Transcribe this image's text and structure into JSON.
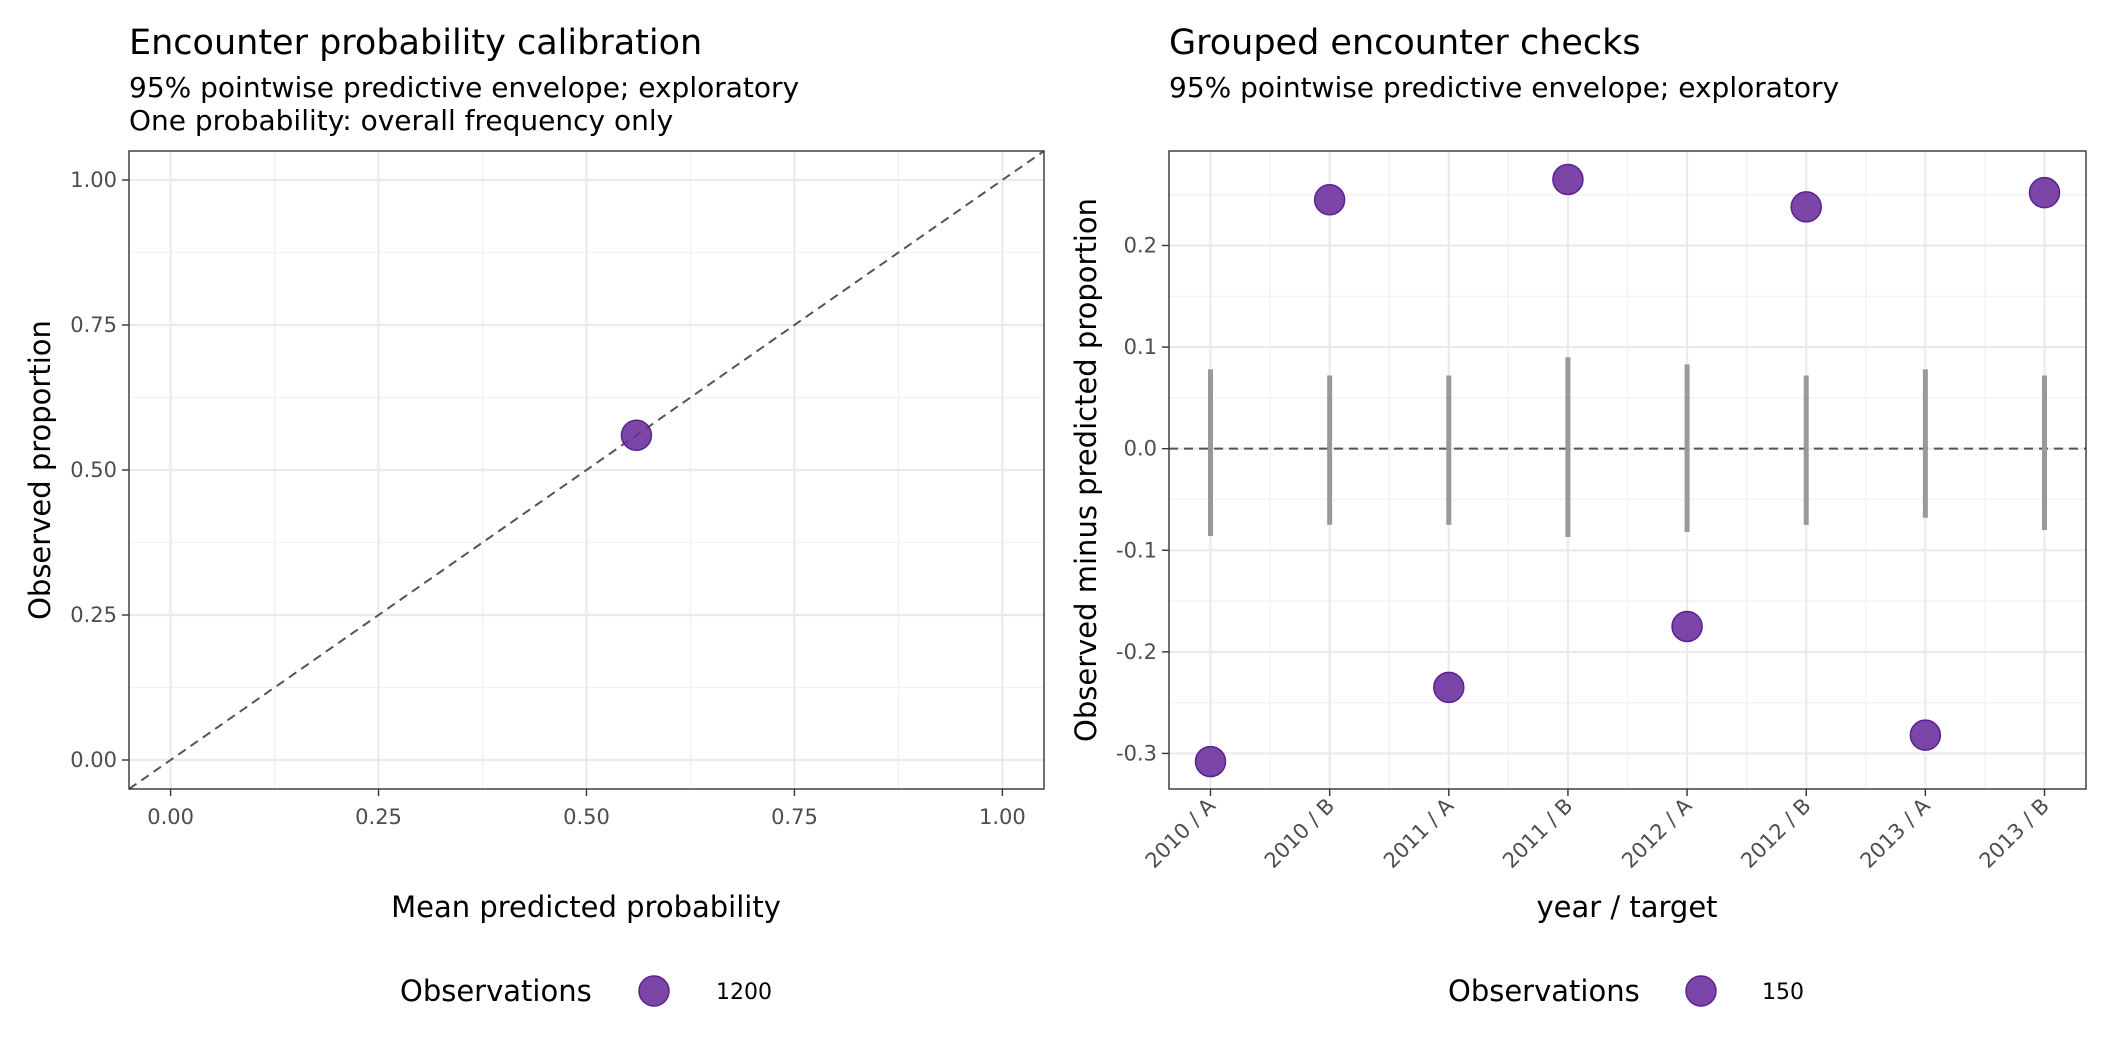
{
  "chart_data": [
    {
      "type": "scatter",
      "title": "Encounter probability calibration",
      "subtitle": [
        "95% pointwise predictive envelope; exploratory",
        "One probability: overall frequency only"
      ],
      "xlabel": "Mean predicted probability",
      "ylabel": "Observed proportion",
      "xlim": [
        -0.05,
        1.05
      ],
      "ylim": [
        -0.05,
        1.05
      ],
      "x_ticks": [
        0,
        0.25,
        0.5,
        0.75,
        1
      ],
      "x_tick_labels": [
        "0.00",
        "0.25",
        "0.50",
        "0.75",
        "1.00"
      ],
      "y_ticks": [
        0,
        0.25,
        0.5,
        0.75,
        1
      ],
      "y_tick_labels": [
        "0.00",
        "0.25",
        "0.50",
        "0.75",
        "1.00"
      ],
      "reference_line": "identity, dashed",
      "points": [
        {
          "x": 0.56,
          "y": 0.56,
          "n": 1200
        }
      ],
      "legend": {
        "title": "Observations",
        "entries": [
          "1200"
        ],
        "placement": "bottom"
      },
      "point_color": "#6a2c9c",
      "grid": true
    },
    {
      "type": "scatter",
      "title": "Grouped encounter checks",
      "subtitle": [
        "95% pointwise predictive envelope; exploratory"
      ],
      "xlabel": "year / target",
      "ylabel": "Observed minus predicted proportion",
      "categories": [
        "2010 / A",
        "2010 / B",
        "2011 / A",
        "2011 / B",
        "2012 / A",
        "2012 / B",
        "2013 / A",
        "2013 / B"
      ],
      "values": [
        -0.308,
        0.245,
        -0.235,
        0.265,
        -0.175,
        0.238,
        -0.282,
        0.252
      ],
      "envelope_low": [
        -0.086,
        -0.075,
        -0.075,
        -0.087,
        -0.082,
        -0.075,
        -0.068,
        -0.08
      ],
      "envelope_high": [
        0.078,
        0.072,
        0.072,
        0.09,
        0.083,
        0.072,
        0.078,
        0.072
      ],
      "ylim": [
        -0.335,
        0.293
      ],
      "y_ticks": [
        -0.3,
        -0.2,
        -0.1,
        0,
        0.1,
        0.2
      ],
      "y_tick_labels": [
        "-0.3",
        "-0.2",
        "-0.1",
        "0.0",
        "0.1",
        "0.2"
      ],
      "reference_line": "y = 0, dashed",
      "legend": {
        "title": "Observations",
        "entries": [
          "150"
        ],
        "placement": "bottom"
      },
      "point_color": "#6a2c9c",
      "envelope_color": "#999999",
      "grid": true
    }
  ]
}
